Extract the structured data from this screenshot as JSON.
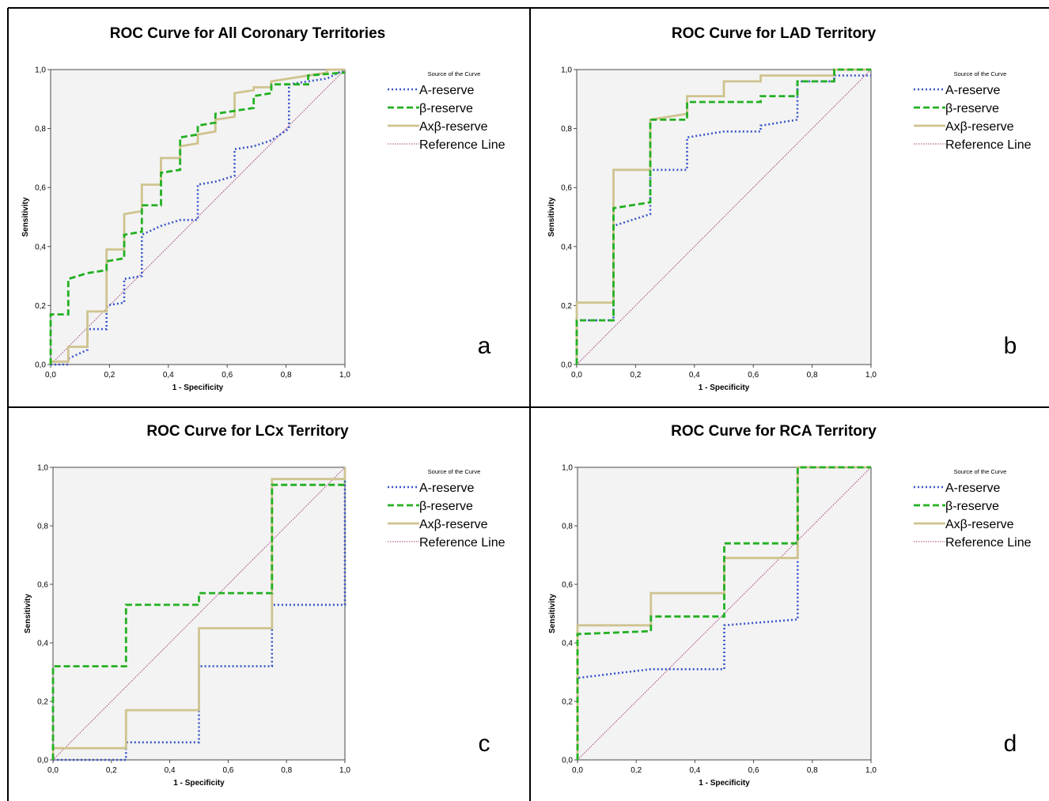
{
  "legend_heading": "Source of the Curve",
  "colors": {
    "A-reserve": "#3a55c8",
    "β-reserve": "#22b022",
    "Axβ-reserve": "#cfc38f",
    "Reference Line": "#a2407c"
  },
  "chart_data": [
    {
      "type": "line",
      "panel_label": "a",
      "title": "ROC Curve for All Coronary Territories",
      "xlabel": "1 - Specificity",
      "ylabel": "Sensitivity",
      "xlim": [
        0,
        1
      ],
      "ylim": [
        0,
        1
      ],
      "x_ticks": [
        "0,0",
        "0,2",
        "0,4",
        "0,6",
        "0,8",
        "1,0"
      ],
      "y_ticks": [
        "0,0",
        "0,2",
        "0,4",
        "0,6",
        "0,8",
        "1,0"
      ],
      "legend": {
        "title": "Source of the Curve",
        "position": "right"
      },
      "series": [
        {
          "name": "A-reserve",
          "style": "dotted",
          "x": [
            0,
            0.06,
            0.06,
            0.125,
            0.125,
            0.19,
            0.19,
            0.25,
            0.25,
            0.31,
            0.31,
            0.375,
            0.44,
            0.5,
            0.5,
            0.56,
            0.625,
            0.625,
            0.69,
            0.75,
            0.81,
            0.81,
            0.875,
            0.94,
            1.0
          ],
          "y": [
            0,
            0,
            0.02,
            0.05,
            0.12,
            0.12,
            0.2,
            0.21,
            0.29,
            0.3,
            0.44,
            0.47,
            0.49,
            0.49,
            0.61,
            0.62,
            0.64,
            0.73,
            0.74,
            0.76,
            0.8,
            0.95,
            0.96,
            0.97,
            1.0
          ]
        },
        {
          "name": "β-reserve",
          "style": "dashed",
          "x": [
            0,
            0,
            0.06,
            0.06,
            0.125,
            0.19,
            0.19,
            0.25,
            0.25,
            0.31,
            0.31,
            0.375,
            0.375,
            0.44,
            0.44,
            0.5,
            0.5,
            0.56,
            0.56,
            0.625,
            0.69,
            0.69,
            0.75,
            0.75,
            0.875,
            0.875,
            1.0
          ],
          "y": [
            0,
            0.17,
            0.17,
            0.29,
            0.31,
            0.32,
            0.35,
            0.36,
            0.44,
            0.45,
            0.54,
            0.54,
            0.65,
            0.66,
            0.77,
            0.78,
            0.81,
            0.82,
            0.85,
            0.86,
            0.87,
            0.91,
            0.92,
            0.95,
            0.95,
            0.98,
            0.99
          ]
        },
        {
          "name": "Axβ-reserve",
          "style": "solid",
          "x": [
            0,
            0,
            0.06,
            0.06,
            0.125,
            0.125,
            0.19,
            0.19,
            0.25,
            0.25,
            0.31,
            0.31,
            0.375,
            0.375,
            0.44,
            0.44,
            0.5,
            0.5,
            0.56,
            0.56,
            0.625,
            0.625,
            0.69,
            0.69,
            0.75,
            0.75,
            0.875,
            0.94,
            0.94,
            1.0
          ],
          "y": [
            0,
            0.01,
            0.01,
            0.06,
            0.06,
            0.18,
            0.18,
            0.39,
            0.39,
            0.51,
            0.52,
            0.61,
            0.61,
            0.7,
            0.7,
            0.74,
            0.75,
            0.78,
            0.79,
            0.83,
            0.84,
            0.92,
            0.93,
            0.94,
            0.94,
            0.96,
            0.98,
            0.99,
            1.0,
            1.0
          ]
        },
        {
          "name": "Reference Line",
          "style": "thin",
          "x": [
            0,
            1
          ],
          "y": [
            0,
            1
          ]
        }
      ]
    },
    {
      "type": "line",
      "panel_label": "b",
      "title": "ROC Curve for LAD Territory",
      "xlabel": "1 - Specificity",
      "ylabel": "Sensitivity",
      "xlim": [
        0,
        1
      ],
      "ylim": [
        0,
        1
      ],
      "x_ticks": [
        "0,0",
        "0,2",
        "0,4",
        "0,6",
        "0,8",
        "1,0"
      ],
      "y_ticks": [
        "0,0",
        "0,2",
        "0,4",
        "0,6",
        "0,8",
        "1,0"
      ],
      "legend": {
        "title": "Source of the Curve",
        "position": "right"
      },
      "series": [
        {
          "name": "A-reserve",
          "style": "dotted",
          "x": [
            0,
            0,
            0.125,
            0.125,
            0.25,
            0.25,
            0.375,
            0.375,
            0.5,
            0.625,
            0.625,
            0.75,
            0.75,
            0.875,
            0.875,
            1.0
          ],
          "y": [
            0,
            0.15,
            0.15,
            0.47,
            0.51,
            0.66,
            0.66,
            0.77,
            0.79,
            0.79,
            0.81,
            0.83,
            0.96,
            0.96,
            0.98,
            0.98
          ]
        },
        {
          "name": "β-reserve",
          "style": "dashed",
          "x": [
            0,
            0,
            0.125,
            0.125,
            0.25,
            0.25,
            0.375,
            0.375,
            0.625,
            0.625,
            0.75,
            0.75,
            0.875,
            0.875,
            1.0
          ],
          "y": [
            0,
            0.15,
            0.15,
            0.53,
            0.55,
            0.83,
            0.83,
            0.89,
            0.89,
            0.91,
            0.91,
            0.96,
            0.96,
            1.0,
            1.0
          ]
        },
        {
          "name": "Axβ-reserve",
          "style": "solid",
          "x": [
            0,
            0,
            0.125,
            0.125,
            0.25,
            0.25,
            0.375,
            0.375,
            0.5,
            0.5,
            0.625,
            0.625,
            0.875,
            0.875,
            1.0
          ],
          "y": [
            0,
            0.21,
            0.21,
            0.66,
            0.66,
            0.83,
            0.85,
            0.91,
            0.91,
            0.96,
            0.96,
            0.98,
            0.98,
            1.0,
            1.0
          ]
        },
        {
          "name": "Reference Line",
          "style": "thin",
          "x": [
            0,
            1
          ],
          "y": [
            0,
            1
          ]
        }
      ]
    },
    {
      "type": "line",
      "panel_label": "c",
      "title": "ROC Curve for LCx Territory",
      "xlabel": "1 - Specificity",
      "ylabel": "Sensitivity",
      "xlim": [
        0,
        1
      ],
      "ylim": [
        0,
        1
      ],
      "x_ticks": [
        "0,0",
        "0,2",
        "0,4",
        "0,6",
        "0,8",
        "1,0"
      ],
      "y_ticks": [
        "0,0",
        "0,2",
        "0,4",
        "0,6",
        "0,8",
        "1,0"
      ],
      "legend": {
        "title": "Source of the Curve",
        "position": "right"
      },
      "series": [
        {
          "name": "A-reserve",
          "style": "dotted",
          "x": [
            0,
            0.25,
            0.25,
            0.5,
            0.5,
            0.75,
            0.75,
            1.0,
            1.0
          ],
          "y": [
            0,
            0,
            0.06,
            0.06,
            0.32,
            0.32,
            0.53,
            0.53,
            0.96
          ]
        },
        {
          "name": "β-reserve",
          "style": "dashed",
          "x": [
            0,
            0,
            0.25,
            0.25,
            0.5,
            0.5,
            0.75,
            0.75,
            1.0,
            1.0
          ],
          "y": [
            0,
            0.32,
            0.32,
            0.53,
            0.53,
            0.57,
            0.57,
            0.94,
            0.94,
            0.95
          ]
        },
        {
          "name": "Axβ-reserve",
          "style": "solid",
          "x": [
            0,
            0,
            0.25,
            0.25,
            0.5,
            0.5,
            0.75,
            0.75,
            1.0,
            1.0
          ],
          "y": [
            0,
            0.04,
            0.04,
            0.17,
            0.17,
            0.45,
            0.45,
            0.96,
            0.96,
            1.0
          ]
        },
        {
          "name": "Reference Line",
          "style": "thin",
          "x": [
            0,
            1
          ],
          "y": [
            0,
            1
          ]
        }
      ]
    },
    {
      "type": "line",
      "panel_label": "d",
      "title": "ROC Curve for RCA Territory",
      "xlabel": "1 - Specificity",
      "ylabel": "Sensitivity",
      "xlim": [
        0,
        1
      ],
      "ylim": [
        0,
        1
      ],
      "x_ticks": [
        "0,0",
        "0,2",
        "0,4",
        "0,6",
        "0,8",
        "1,0"
      ],
      "y_ticks": [
        "0,0",
        "0,2",
        "0,4",
        "0,6",
        "0,8",
        "1,0"
      ],
      "legend": {
        "title": "Source of the Curve",
        "position": "right"
      },
      "series": [
        {
          "name": "A-reserve",
          "style": "dotted",
          "x": [
            0,
            0,
            0.25,
            0.5,
            0.5,
            0.75,
            0.75,
            1.0
          ],
          "y": [
            0,
            0.28,
            0.31,
            0.31,
            0.46,
            0.48,
            1.0,
            1.0
          ]
        },
        {
          "name": "β-reserve",
          "style": "dashed",
          "x": [
            0,
            0,
            0.25,
            0.25,
            0.5,
            0.5,
            0.75,
            0.75,
            1.0
          ],
          "y": [
            0,
            0.43,
            0.44,
            0.49,
            0.49,
            0.74,
            0.74,
            1.0,
            1.0
          ]
        },
        {
          "name": "Axβ-reserve",
          "style": "solid",
          "x": [
            0,
            0,
            0.25,
            0.25,
            0.5,
            0.5,
            0.75,
            0.75,
            1.0
          ],
          "y": [
            0,
            0.46,
            0.46,
            0.57,
            0.57,
            0.69,
            0.69,
            1.0,
            1.0
          ]
        },
        {
          "name": "Reference Line",
          "style": "thin",
          "x": [
            0,
            1
          ],
          "y": [
            0,
            1
          ]
        }
      ]
    }
  ]
}
